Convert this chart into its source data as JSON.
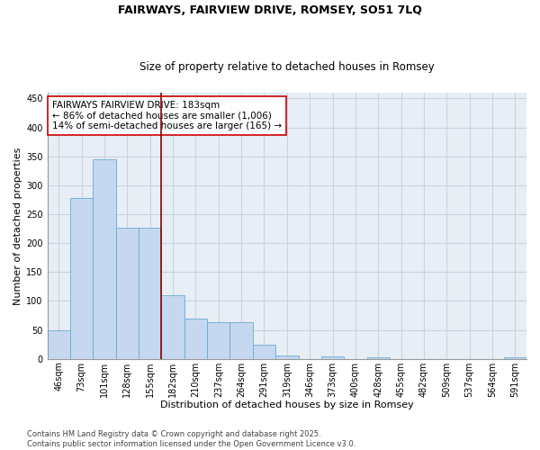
{
  "title": "FAIRWAYS, FAIRVIEW DRIVE, ROMSEY, SO51 7LQ",
  "subtitle": "Size of property relative to detached houses in Romsey",
  "xlabel": "Distribution of detached houses by size in Romsey",
  "ylabel": "Number of detached properties",
  "footer_line1": "Contains HM Land Registry data © Crown copyright and database right 2025.",
  "footer_line2": "Contains public sector information licensed under the Open Government Licence v3.0.",
  "categories": [
    "46sqm",
    "73sqm",
    "101sqm",
    "128sqm",
    "155sqm",
    "182sqm",
    "210sqm",
    "237sqm",
    "264sqm",
    "291sqm",
    "319sqm",
    "346sqm",
    "373sqm",
    "400sqm",
    "428sqm",
    "455sqm",
    "482sqm",
    "509sqm",
    "537sqm",
    "564sqm",
    "591sqm"
  ],
  "values": [
    50,
    278,
    345,
    226,
    226,
    110,
    70,
    63,
    63,
    25,
    6,
    0,
    4,
    0,
    3,
    0,
    0,
    0,
    0,
    0,
    3
  ],
  "bar_color": "#c5d8ef",
  "bar_edge_color": "#6aaad4",
  "annotation_line_color": "#8b0000",
  "annotation_box_text": "FAIRWAYS FAIRVIEW DRIVE: 183sqm\n← 86% of detached houses are smaller (1,006)\n14% of semi-detached houses are larger (165) →",
  "annotation_box_color": "#cc0000",
  "ylim": [
    0,
    460
  ],
  "yticks": [
    0,
    50,
    100,
    150,
    200,
    250,
    300,
    350,
    400,
    450
  ],
  "bg_color": "#ffffff",
  "plot_bg_color": "#e8eef5",
  "grid_color": "#c8d4e0",
  "title_fontsize": 9,
  "subtitle_fontsize": 8.5,
  "xlabel_fontsize": 8,
  "ylabel_fontsize": 8,
  "tick_fontsize": 7,
  "annotation_fontsize": 7.5,
  "footer_fontsize": 6
}
